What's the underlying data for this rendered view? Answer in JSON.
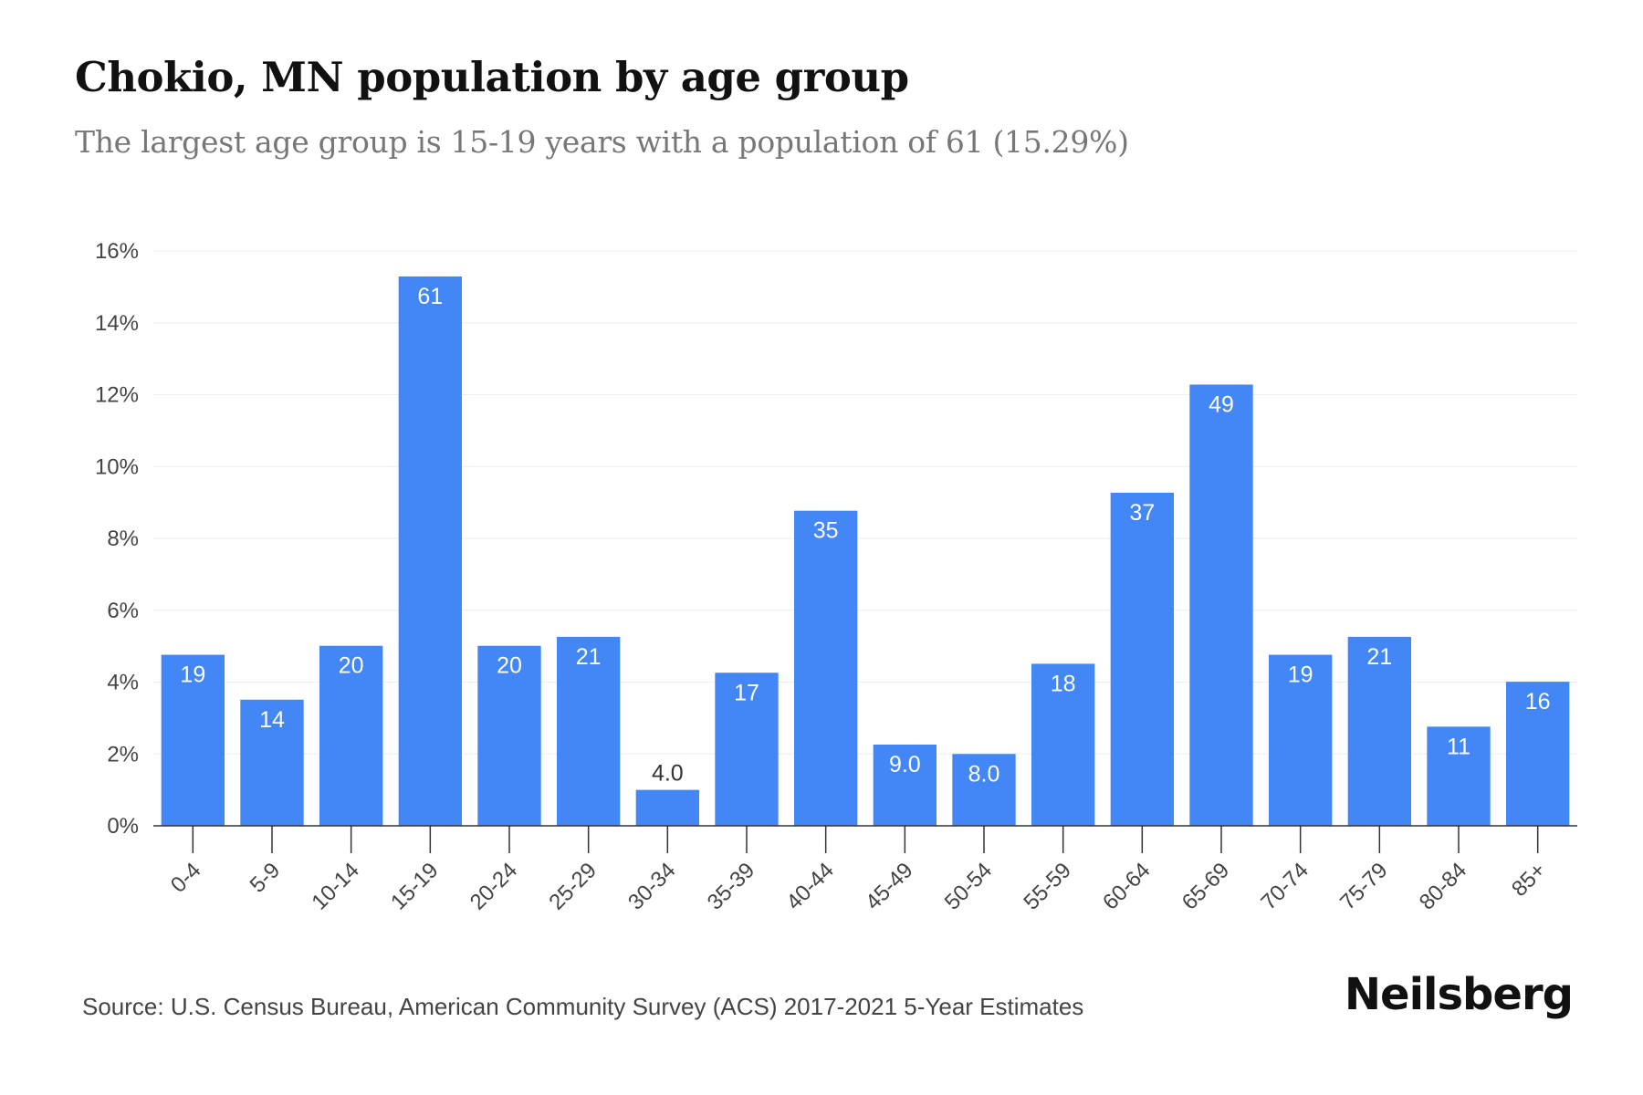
{
  "title": "Chokio, MN population by age group",
  "subtitle": "The largest age group is 15-19 years with a population of 61 (15.29%)",
  "source": "Source: U.S. Census Bureau, American Community Survey (ACS) 2017-2021 5-Year Estimates",
  "brand": "Neilsberg",
  "colors": {
    "bar": "#4287f5",
    "grid": "#eeeeee",
    "axis": "#333333",
    "label_inside": "#ffffff",
    "label_outside": "#333333"
  },
  "chart_data": {
    "type": "bar",
    "categories": [
      "0-4",
      "5-9",
      "10-14",
      "15-19",
      "20-24",
      "25-29",
      "30-34",
      "35-39",
      "40-44",
      "45-49",
      "50-54",
      "55-59",
      "60-64",
      "65-69",
      "70-74",
      "75-79",
      "80-84",
      "85+"
    ],
    "values": [
      4.76,
      3.51,
      5.01,
      15.29,
      5.01,
      5.26,
      1.0,
      4.26,
      8.77,
      2.26,
      2.0,
      4.51,
      9.27,
      12.28,
      4.76,
      5.26,
      2.76,
      4.01
    ],
    "data_labels": [
      "19",
      "14",
      "20",
      "61",
      "20",
      "21",
      "4.0",
      "17",
      "35",
      "9.0",
      "8.0",
      "18",
      "37",
      "49",
      "19",
      "21",
      "11",
      "16"
    ],
    "ylim": [
      0,
      16
    ],
    "yticks": [
      "0%",
      "2%",
      "4%",
      "6%",
      "8%",
      "10%",
      "12%",
      "14%",
      "16%"
    ],
    "ytick_values": [
      0,
      2,
      4,
      6,
      8,
      10,
      12,
      14,
      16
    ],
    "grid": true
  }
}
